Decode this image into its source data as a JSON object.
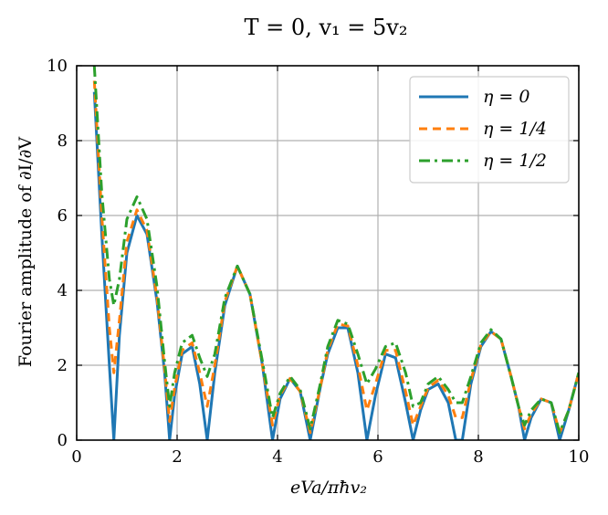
{
  "chart_data": {
    "type": "line",
    "title": "T = 0, v₁ = 5v₂",
    "xlabel": "eVa/πħv₂",
    "ylabel": "Fourier amplitude of ∂I/∂V",
    "xlim": [
      0,
      10
    ],
    "ylim": [
      0,
      10
    ],
    "xticks": [
      "0",
      "2",
      "4",
      "6",
      "8",
      "10"
    ],
    "yticks": [
      "0",
      "2",
      "4",
      "6",
      "8",
      "10"
    ],
    "grid": true,
    "legend_position": "top-right",
    "colors": {
      "eta_0": "#1f77b4",
      "eta_quarter": "#ff7f0e",
      "eta_half": "#2ca02c"
    },
    "series": [
      {
        "name": "η = 0",
        "color": "#1f77b4",
        "line_style": "solid",
        "x": [
          0.35,
          0.5,
          0.65,
          0.74,
          0.85,
          1.0,
          1.2,
          1.4,
          1.6,
          1.75,
          1.85,
          1.95,
          2.1,
          2.3,
          2.45,
          2.6,
          2.75,
          2.95,
          3.2,
          3.45,
          3.7,
          3.9,
          4.05,
          4.25,
          4.45,
          4.65,
          4.85,
          5.0,
          5.2,
          5.4,
          5.6,
          5.78,
          5.95,
          6.15,
          6.35,
          6.55,
          6.7,
          6.85,
          7.0,
          7.2,
          7.4,
          7.55,
          7.68,
          7.85,
          8.05,
          8.25,
          8.45,
          8.65,
          8.8,
          8.92,
          9.05,
          9.25,
          9.45,
          9.62,
          9.8,
          10.0
        ],
        "y": [
          9.3,
          5.5,
          2.0,
          0.0,
          2.8,
          5.0,
          6.0,
          5.5,
          3.7,
          1.8,
          0.0,
          1.2,
          2.3,
          2.5,
          1.5,
          0.0,
          1.8,
          3.6,
          4.65,
          3.9,
          2.0,
          0.0,
          1.1,
          1.65,
          1.3,
          0.0,
          1.4,
          2.3,
          3.0,
          3.0,
          1.8,
          0.0,
          1.2,
          2.3,
          2.2,
          1.0,
          0.0,
          0.8,
          1.35,
          1.5,
          1.0,
          0.0,
          0.0,
          1.5,
          2.5,
          2.9,
          2.7,
          1.7,
          0.9,
          0.0,
          0.6,
          1.1,
          1.0,
          0.0,
          0.8,
          1.8
        ]
      },
      {
        "name": "η = 1/4",
        "color": "#ff7f0e",
        "line_style": "dashed",
        "x": [
          0.35,
          0.5,
          0.65,
          0.74,
          0.85,
          1.0,
          1.2,
          1.4,
          1.6,
          1.75,
          1.85,
          1.95,
          2.1,
          2.3,
          2.45,
          2.6,
          2.75,
          2.95,
          3.2,
          3.45,
          3.7,
          3.9,
          4.05,
          4.25,
          4.45,
          4.65,
          4.85,
          5.0,
          5.2,
          5.4,
          5.6,
          5.78,
          5.95,
          6.15,
          6.35,
          6.55,
          6.7,
          6.85,
          7.0,
          7.2,
          7.4,
          7.55,
          7.68,
          7.85,
          8.05,
          8.25,
          8.45,
          8.65,
          8.8,
          8.92,
          9.05,
          9.25,
          9.45,
          9.62,
          9.8,
          10.0
        ],
        "y": [
          9.6,
          6.0,
          3.0,
          1.8,
          3.2,
          5.3,
          6.15,
          5.6,
          3.8,
          1.9,
          0.5,
          1.4,
          2.4,
          2.6,
          1.8,
          0.9,
          2.0,
          3.7,
          4.65,
          3.9,
          2.0,
          0.4,
          1.2,
          1.65,
          1.3,
          0.2,
          1.4,
          2.4,
          3.1,
          3.05,
          2.0,
          0.8,
          1.5,
          2.4,
          2.4,
          1.3,
          0.4,
          0.9,
          1.4,
          1.6,
          1.2,
          0.6,
          0.6,
          1.6,
          2.55,
          2.9,
          2.7,
          1.7,
          0.9,
          0.3,
          0.7,
          1.1,
          1.0,
          0.2,
          0.8,
          1.8
        ]
      },
      {
        "name": "η = 1/2",
        "color": "#2ca02c",
        "line_style": "dashdot",
        "x": [
          0.35,
          0.5,
          0.65,
          0.74,
          0.85,
          1.0,
          1.2,
          1.4,
          1.6,
          1.75,
          1.85,
          1.95,
          2.1,
          2.3,
          2.45,
          2.6,
          2.75,
          2.95,
          3.2,
          3.45,
          3.7,
          3.9,
          4.05,
          4.25,
          4.45,
          4.65,
          4.85,
          5.0,
          5.2,
          5.4,
          5.6,
          5.78,
          5.95,
          6.15,
          6.35,
          6.55,
          6.7,
          6.85,
          7.0,
          7.2,
          7.4,
          7.55,
          7.68,
          7.85,
          8.05,
          8.25,
          8.45,
          8.65,
          8.8,
          8.92,
          9.05,
          9.25,
          9.45,
          9.62,
          9.8,
          10.0
        ],
        "y": [
          10.0,
          6.6,
          4.3,
          3.6,
          4.3,
          5.9,
          6.5,
          5.9,
          4.1,
          2.1,
          0.9,
          1.8,
          2.6,
          2.8,
          2.2,
          1.7,
          2.3,
          3.8,
          4.65,
          3.9,
          2.1,
          0.6,
          1.25,
          1.7,
          1.35,
          0.3,
          1.5,
          2.5,
          3.2,
          3.1,
          2.3,
          1.5,
          1.9,
          2.5,
          2.6,
          1.8,
          0.9,
          1.0,
          1.5,
          1.7,
          1.35,
          1.0,
          1.0,
          1.7,
          2.6,
          2.95,
          2.7,
          1.7,
          0.9,
          0.4,
          0.8,
          1.1,
          1.0,
          0.2,
          0.8,
          1.8
        ]
      }
    ]
  }
}
